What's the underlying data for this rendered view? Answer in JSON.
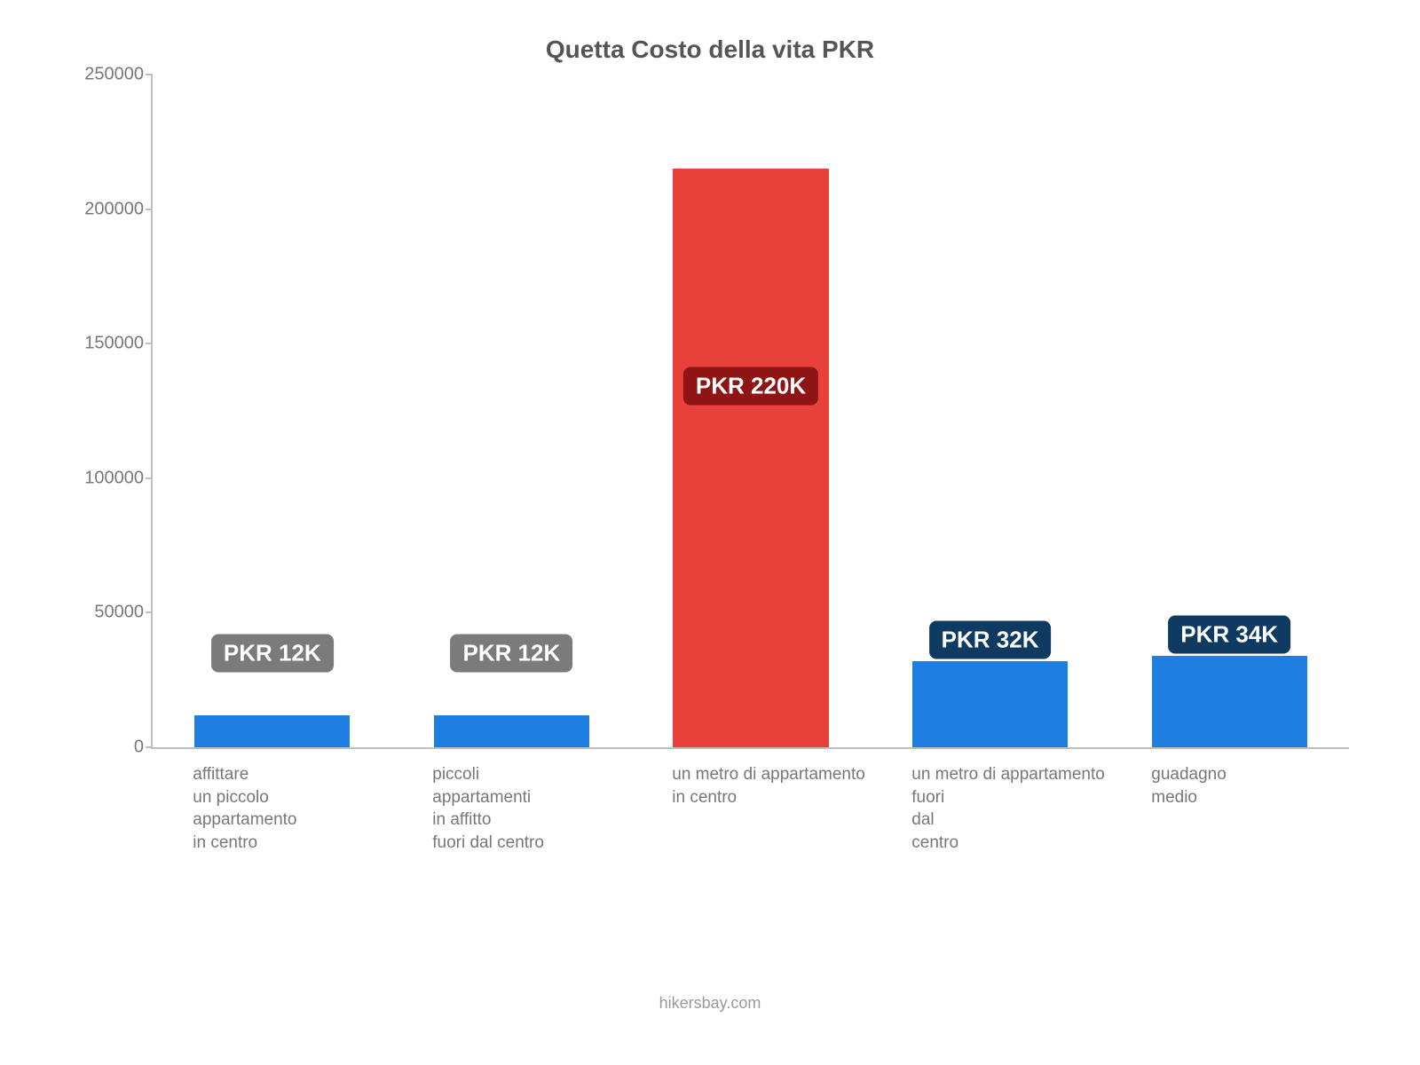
{
  "title": "Quetta Costo della vita PKR",
  "title_fontsize": 28,
  "title_color": "#555555",
  "footer": "hikersbay.com",
  "footer_fontsize": 18,
  "footer_color": "#999999",
  "chart": {
    "type": "bar",
    "axis_color": "#bfbfbf",
    "tick_color": "#777777",
    "tick_fontsize": 20,
    "ylim_min": 0,
    "ylim_max": 250000,
    "ytick_step": 50000,
    "yticks": [
      "0",
      "50000",
      "100000",
      "150000",
      "200000",
      "250000"
    ],
    "bar_width_pct": 13,
    "gap_pct": 7,
    "left_pad_pct": 3.5,
    "bars": [
      {
        "value": 12000,
        "value_label": "PKR 12K",
        "color": "#1e7fe0",
        "label_bg": "#7b7b7b",
        "tick_lines": [
          "affittare",
          "un piccolo",
          "appartamento",
          "in centro"
        ]
      },
      {
        "value": 12000,
        "value_label": "PKR 12K",
        "color": "#1e7fe0",
        "label_bg": "#7b7b7b",
        "tick_lines": [
          "piccoli",
          "appartamenti",
          "in affitto",
          "fuori dal centro"
        ]
      },
      {
        "value": 215000,
        "value_label": "PKR 220K",
        "color": "#e8403a",
        "label_bg": "#8f1414",
        "tick_lines": [
          "un metro di appartamento",
          "in centro"
        ]
      },
      {
        "value": 32000,
        "value_label": "PKR 32K",
        "color": "#1e7fe0",
        "label_bg": "#0f3b63",
        "tick_lines": [
          "un metro di appartamento",
          "fuori",
          "dal",
          "centro"
        ]
      },
      {
        "value": 34000,
        "value_label": "PKR 34K",
        "color": "#1e7fe0",
        "label_bg": "#0f3b63",
        "tick_lines": [
          "guadagno",
          "medio"
        ]
      }
    ],
    "bar_label_fontsize": 26,
    "xlabel_fontsize": 19,
    "xlabel_color": "#777777",
    "background_color": "#ffffff"
  }
}
